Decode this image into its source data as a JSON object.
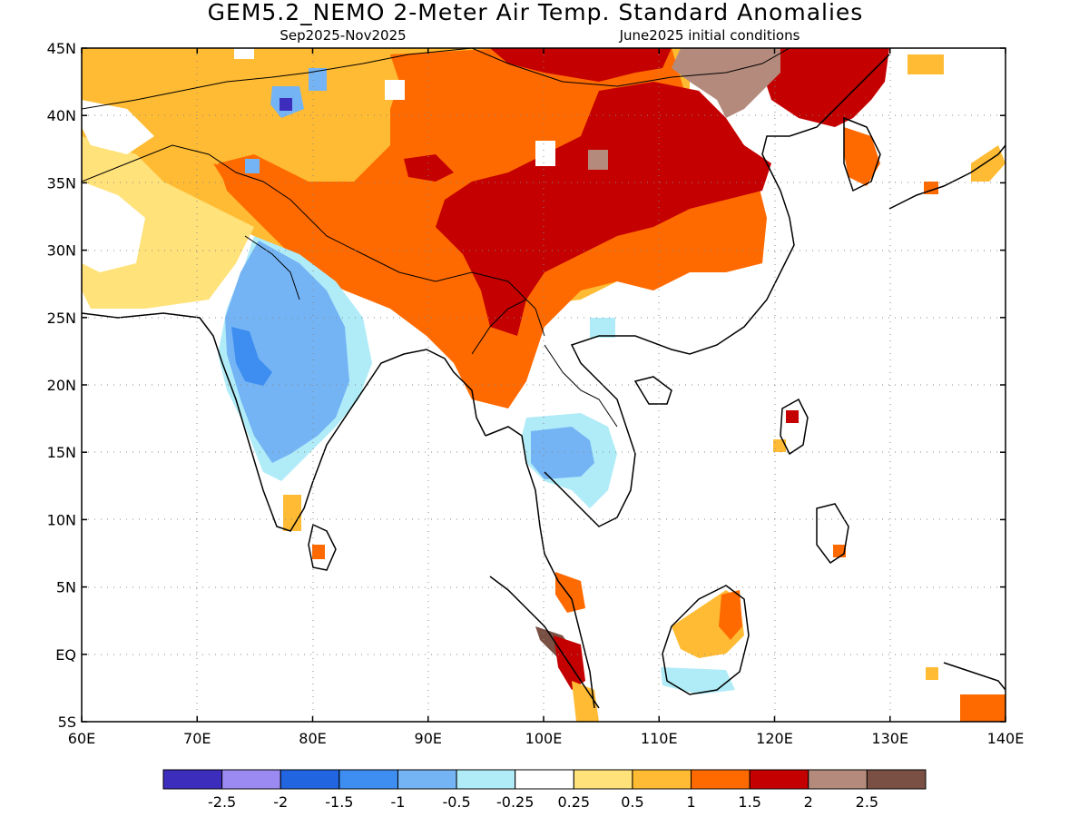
{
  "title": "GEM5.2_NEMO 2-Meter Air Temp. Standard Anomalies",
  "subtitle_left": "Sep2025-Nov2025",
  "subtitle_right": "June2025 initial conditions",
  "map": {
    "lon_range": [
      60,
      140
    ],
    "lat_range": [
      -5,
      45
    ],
    "lon_ticks": [
      "60E",
      "70E",
      "80E",
      "90E",
      "100E",
      "110E",
      "120E",
      "130E",
      "140E"
    ],
    "lat_ticks": [
      "45N",
      "40N",
      "35N",
      "30N",
      "25N",
      "20N",
      "15N",
      "10N",
      "5N",
      "EQ",
      "5S"
    ]
  },
  "colorbar": {
    "colors": [
      "#3d2dbd",
      "#9b8af2",
      "#2166e0",
      "#3d8ef0",
      "#74b4f5",
      "#b0ecf7",
      "#ffffff",
      "#ffe27a",
      "#ffbb33",
      "#ff6a00",
      "#c40000",
      "#b48a7c",
      "#7a5044"
    ],
    "labels": [
      "-2.5",
      "-2",
      "-1.5",
      "-1",
      "-0.5",
      "-0.25",
      "0.25",
      "0.5",
      "1",
      "1.5",
      "2",
      "2.5"
    ]
  }
}
